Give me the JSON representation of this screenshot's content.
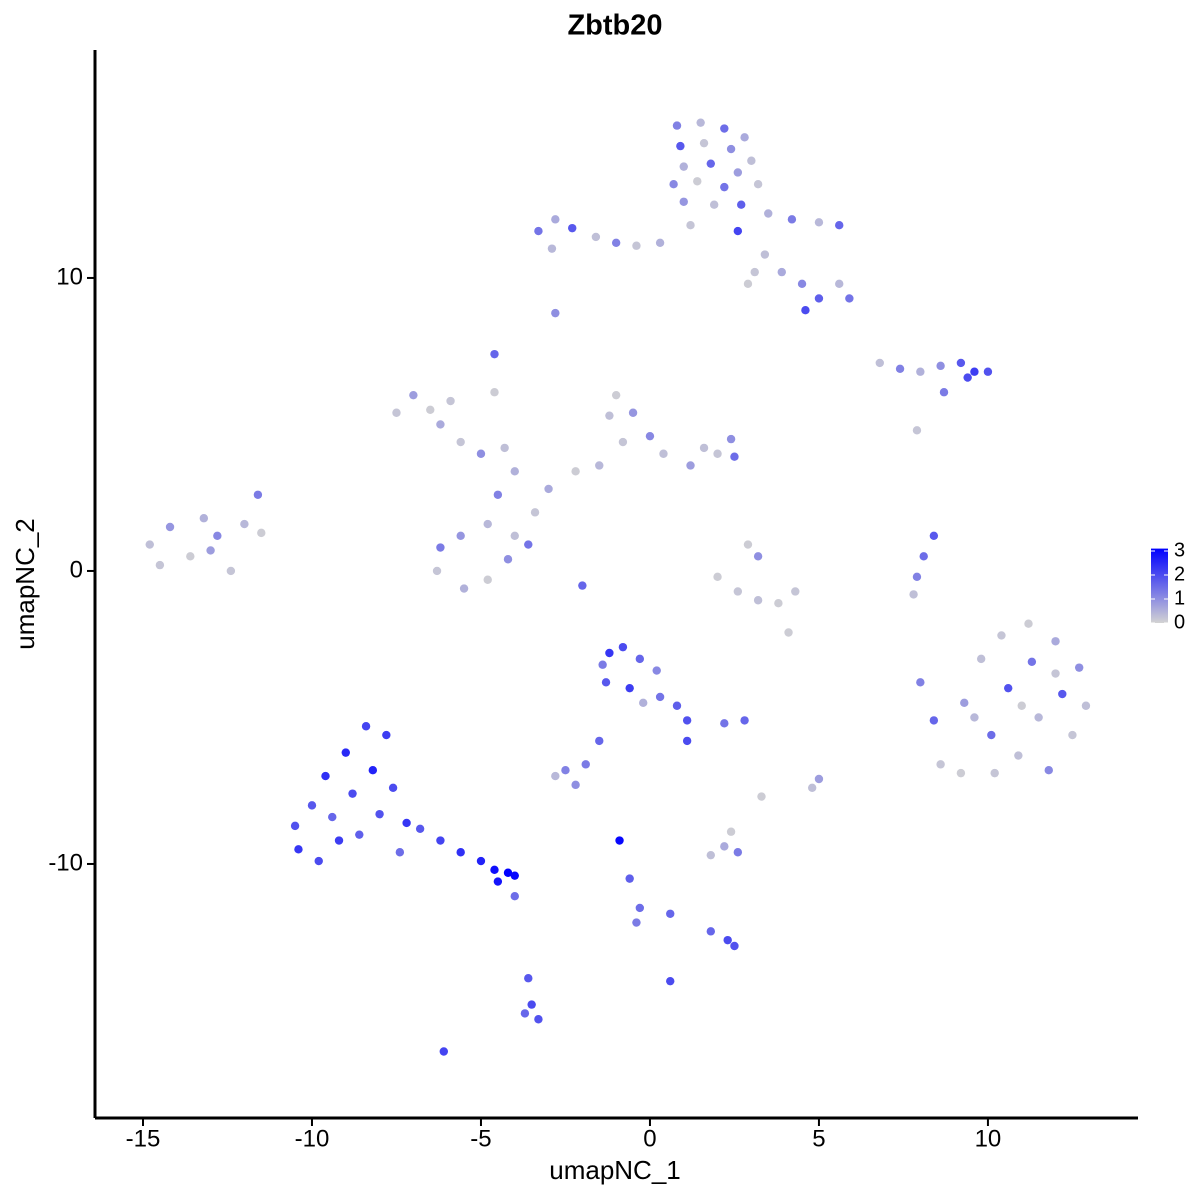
{
  "chart_data": {
    "type": "scatter",
    "title": "Zbtb20",
    "x_label": "umapNC_1",
    "y_label": "umapNC_2",
    "xlim": [
      -16.42,
      14.44
    ],
    "ylim": [
      -18.67,
      17.78
    ],
    "xticks": [
      -15,
      -10,
      -5,
      0,
      5,
      10
    ],
    "yticks": [
      -10,
      0,
      10
    ],
    "colorbar": {
      "lim": [
        0,
        3.1
      ],
      "ticks": [
        0,
        1,
        2,
        3
      ],
      "low": "#d3d3d3",
      "high": "#0000ff"
    },
    "points": [
      [
        0.8,
        15.2,
        1.2
      ],
      [
        1.5,
        15.3,
        0.4
      ],
      [
        2.2,
        15.1,
        1.5
      ],
      [
        2.8,
        14.8,
        0.6
      ],
      [
        0.9,
        14.5,
        1.8
      ],
      [
        1.6,
        14.6,
        0.2
      ],
      [
        2.4,
        14.4,
        1.0
      ],
      [
        3.0,
        14.0,
        0.3
      ],
      [
        1.0,
        13.8,
        0.5
      ],
      [
        1.8,
        13.9,
        1.6
      ],
      [
        2.6,
        13.6,
        0.8
      ],
      [
        0.7,
        13.2,
        1.1
      ],
      [
        1.4,
        13.3,
        0.1
      ],
      [
        2.2,
        13.1,
        1.4
      ],
      [
        3.2,
        13.2,
        0.2
      ],
      [
        1.0,
        12.6,
        0.9
      ],
      [
        1.9,
        12.5,
        0.3
      ],
      [
        2.7,
        12.5,
        1.7
      ],
      [
        3.5,
        12.2,
        0.5
      ],
      [
        4.2,
        12.0,
        1.3
      ],
      [
        5.0,
        11.9,
        0.4
      ],
      [
        5.6,
        11.8,
        1.6
      ],
      [
        1.2,
        11.8,
        0.2
      ],
      [
        2.6,
        11.6,
        2.1
      ],
      [
        -3.3,
        11.6,
        1.4
      ],
      [
        -2.8,
        12.0,
        0.6
      ],
      [
        -2.3,
        11.7,
        1.8
      ],
      [
        -1.6,
        11.4,
        0.3
      ],
      [
        -1.0,
        11.2,
        1.2
      ],
      [
        -0.4,
        11.1,
        0.2
      ],
      [
        0.3,
        11.2,
        0.5
      ],
      [
        -2.9,
        11.0,
        0.4
      ],
      [
        3.4,
        10.8,
        0.3
      ],
      [
        3.9,
        10.2,
        0.6
      ],
      [
        4.5,
        9.8,
        1.1
      ],
      [
        5.0,
        9.3,
        1.7
      ],
      [
        4.6,
        8.9,
        2.0
      ],
      [
        5.6,
        9.8,
        0.4
      ],
      [
        5.9,
        9.3,
        1.4
      ],
      [
        3.1,
        10.2,
        0.2
      ],
      [
        2.9,
        9.8,
        0.1
      ],
      [
        -2.8,
        8.8,
        1.0
      ],
      [
        -4.6,
        7.4,
        1.6
      ],
      [
        6.8,
        7.1,
        0.3
      ],
      [
        7.4,
        6.9,
        1.2
      ],
      [
        8.0,
        6.8,
        0.5
      ],
      [
        8.6,
        7.0,
        1.0
      ],
      [
        9.2,
        7.1,
        1.8
      ],
      [
        9.6,
        6.8,
        2.2
      ],
      [
        10.0,
        6.8,
        1.9
      ],
      [
        9.4,
        6.6,
        2.0
      ],
      [
        8.7,
        6.1,
        1.3
      ],
      [
        7.9,
        4.8,
        0.2
      ],
      [
        -7.5,
        5.4,
        0.2
      ],
      [
        -7.0,
        6.0,
        0.8
      ],
      [
        -6.5,
        5.5,
        0.1
      ],
      [
        -6.2,
        5.0,
        0.6
      ],
      [
        -5.6,
        4.4,
        0.2
      ],
      [
        -5.0,
        4.0,
        1.0
      ],
      [
        -4.3,
        4.2,
        0.3
      ],
      [
        -4.0,
        3.4,
        0.5
      ],
      [
        -4.5,
        2.6,
        1.2
      ],
      [
        -4.8,
        1.6,
        0.4
      ],
      [
        -5.6,
        1.2,
        0.9
      ],
      [
        -6.2,
        0.8,
        1.3
      ],
      [
        -6.3,
        0.0,
        0.2
      ],
      [
        -5.5,
        -0.6,
        0.5
      ],
      [
        -4.8,
        -0.3,
        0.1
      ],
      [
        -4.2,
        0.4,
        1.0
      ],
      [
        -4.0,
        1.2,
        0.3
      ],
      [
        -3.6,
        0.9,
        1.4
      ],
      [
        -3.4,
        2.0,
        0.2
      ],
      [
        -3.0,
        2.8,
        0.6
      ],
      [
        -2.2,
        3.4,
        0.1
      ],
      [
        -1.5,
        3.6,
        0.4
      ],
      [
        -0.8,
        4.4,
        0.2
      ],
      [
        -1.2,
        5.3,
        0.3
      ],
      [
        -1.0,
        6.0,
        0.1
      ],
      [
        -0.5,
        5.4,
        0.9
      ],
      [
        0.0,
        4.6,
        1.1
      ],
      [
        0.4,
        4.0,
        0.3
      ],
      [
        1.2,
        3.6,
        0.8
      ],
      [
        2.0,
        4.0,
        0.2
      ],
      [
        2.5,
        3.9,
        1.5
      ],
      [
        2.4,
        4.5,
        1.0
      ],
      [
        1.6,
        4.2,
        0.3
      ],
      [
        -2.0,
        -0.5,
        1.6
      ],
      [
        -4.6,
        6.1,
        0.1
      ],
      [
        -5.9,
        5.8,
        0.2
      ],
      [
        -14.8,
        0.9,
        0.3
      ],
      [
        -14.2,
        1.5,
        0.9
      ],
      [
        -13.6,
        0.5,
        0.1
      ],
      [
        -13.2,
        1.8,
        0.5
      ],
      [
        -12.8,
        1.2,
        1.1
      ],
      [
        -12.4,
        0.0,
        0.2
      ],
      [
        -12.0,
        1.6,
        0.4
      ],
      [
        -11.6,
        2.6,
        1.3
      ],
      [
        -11.5,
        1.3,
        0.1
      ],
      [
        -14.5,
        0.2,
        0.2
      ],
      [
        -13.0,
        0.7,
        0.8
      ],
      [
        8.4,
        1.2,
        1.8
      ],
      [
        8.1,
        0.5,
        1.5
      ],
      [
        7.9,
        -0.2,
        1.2
      ],
      [
        7.8,
        -0.8,
        0.3
      ],
      [
        2.0,
        -0.2,
        0.1
      ],
      [
        2.6,
        -0.7,
        0.2
      ],
      [
        3.2,
        -1.0,
        0.3
      ],
      [
        3.8,
        -1.1,
        0.1
      ],
      [
        4.3,
        -0.7,
        0.2
      ],
      [
        3.2,
        0.5,
        1.0
      ],
      [
        2.9,
        0.9,
        0.1
      ],
      [
        4.1,
        -2.1,
        0.1
      ],
      [
        8.0,
        -3.8,
        1.2
      ],
      [
        8.4,
        -5.1,
        1.6
      ],
      [
        8.6,
        -6.6,
        0.2
      ],
      [
        9.2,
        -6.9,
        0.1
      ],
      [
        9.3,
        -4.5,
        0.8
      ],
      [
        9.8,
        -3.0,
        0.3
      ],
      [
        10.1,
        -5.6,
        1.5
      ],
      [
        10.4,
        -2.2,
        0.2
      ],
      [
        10.6,
        -4.0,
        1.9
      ],
      [
        10.9,
        -6.3,
        0.3
      ],
      [
        11.2,
        -1.8,
        0.1
      ],
      [
        11.3,
        -3.1,
        1.4
      ],
      [
        11.5,
        -5.0,
        0.4
      ],
      [
        11.8,
        -6.8,
        1.1
      ],
      [
        12.0,
        -2.4,
        0.6
      ],
      [
        12.2,
        -4.2,
        1.8
      ],
      [
        12.5,
        -5.6,
        0.2
      ],
      [
        12.7,
        -3.3,
        1.0
      ],
      [
        12.9,
        -4.6,
        0.3
      ],
      [
        10.2,
        -6.9,
        0.2
      ],
      [
        9.6,
        -5.0,
        0.4
      ],
      [
        11.0,
        -4.6,
        0.1
      ],
      [
        12.0,
        -3.5,
        0.2
      ],
      [
        -10.5,
        -8.7,
        1.9
      ],
      [
        -10.4,
        -9.5,
        2.3
      ],
      [
        -10.0,
        -8.0,
        1.8
      ],
      [
        -9.8,
        -9.9,
        2.0
      ],
      [
        -9.6,
        -7.0,
        2.4
      ],
      [
        -9.4,
        -8.4,
        1.6
      ],
      [
        -9.2,
        -9.2,
        2.2
      ],
      [
        -9.0,
        -6.2,
        2.5
      ],
      [
        -8.8,
        -7.6,
        2.0
      ],
      [
        -8.6,
        -9.0,
        1.7
      ],
      [
        -8.4,
        -5.3,
        2.1
      ],
      [
        -8.2,
        -6.8,
        2.6
      ],
      [
        -8.0,
        -8.3,
        1.9
      ],
      [
        -7.8,
        -5.6,
        2.2
      ],
      [
        -7.6,
        -7.4,
        2.0
      ],
      [
        -7.4,
        -9.6,
        1.5
      ],
      [
        -7.2,
        -8.6,
        2.3
      ],
      [
        -6.8,
        -8.8,
        1.8
      ],
      [
        -6.2,
        -9.2,
        2.1
      ],
      [
        -5.6,
        -9.6,
        2.4
      ],
      [
        -5.0,
        -9.9,
        2.6
      ],
      [
        -4.6,
        -10.2,
        2.9
      ],
      [
        -4.2,
        -10.3,
        3.1
      ],
      [
        -4.0,
        -10.4,
        3.0
      ],
      [
        -4.5,
        -10.6,
        2.8
      ],
      [
        -1.2,
        -2.8,
        2.3
      ],
      [
        -0.8,
        -2.6,
        2.0
      ],
      [
        -0.3,
        -3.0,
        1.6
      ],
      [
        0.2,
        -3.4,
        1.1
      ],
      [
        -1.3,
        -3.8,
        1.8
      ],
      [
        -0.6,
        -4.0,
        2.2
      ],
      [
        0.3,
        -4.3,
        1.4
      ],
      [
        0.8,
        -4.6,
        1.7
      ],
      [
        1.1,
        -5.1,
        1.9
      ],
      [
        1.1,
        -5.8,
        2.0
      ],
      [
        -1.4,
        -3.2,
        1.3
      ],
      [
        -0.2,
        -4.5,
        0.5
      ],
      [
        -1.5,
        -5.8,
        1.6
      ],
      [
        -1.9,
        -6.6,
        1.3
      ],
      [
        -2.5,
        -6.8,
        1.2
      ],
      [
        -2.8,
        -7.0,
        0.4
      ],
      [
        -2.2,
        -7.3,
        1.0
      ],
      [
        2.8,
        -5.1,
        1.6
      ],
      [
        2.2,
        -5.2,
        1.4
      ],
      [
        2.2,
        -9.4,
        0.6
      ],
      [
        2.6,
        -9.6,
        1.3
      ],
      [
        1.8,
        -9.7,
        0.3
      ],
      [
        2.4,
        -8.9,
        0.1
      ],
      [
        2.3,
        -12.6,
        2.0
      ],
      [
        2.5,
        -12.8,
        1.9
      ],
      [
        1.8,
        -12.3,
        1.6
      ],
      [
        -0.9,
        -9.2,
        3.0
      ],
      [
        -0.6,
        -10.5,
        1.7
      ],
      [
        -0.3,
        -11.5,
        1.5
      ],
      [
        -0.4,
        -12.0,
        1.3
      ],
      [
        0.6,
        -11.7,
        1.6
      ],
      [
        -3.6,
        -13.9,
        1.8
      ],
      [
        -3.5,
        -14.8,
        2.0
      ],
      [
        -3.3,
        -15.3,
        1.9
      ],
      [
        -3.7,
        -15.1,
        1.6
      ],
      [
        0.6,
        -14.0,
        2.0
      ],
      [
        -6.1,
        -16.4,
        2.1
      ],
      [
        5.0,
        -7.1,
        0.8
      ],
      [
        4.8,
        -7.4,
        0.3
      ],
      [
        3.3,
        -7.7,
        0.1
      ],
      [
        -4.0,
        -11.1,
        1.5
      ]
    ]
  }
}
